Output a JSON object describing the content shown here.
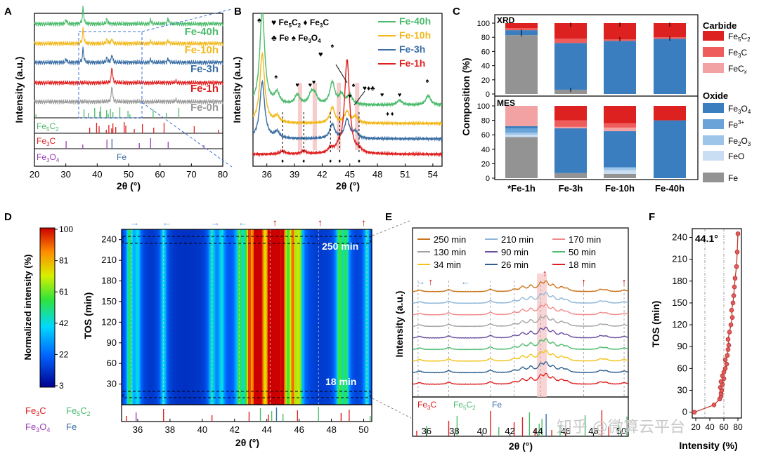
{
  "figure": {
    "panel_labels": [
      "A",
      "B",
      "C",
      "D",
      "E",
      "F"
    ]
  },
  "colors": {
    "fe40": "#4cbb6c",
    "fe10": "#f2b81c",
    "fe3": "#3a6ea5",
    "fe1": "#e02020",
    "fe0": "#999999",
    "fe5c2": "#dd2020",
    "fe3c": "#ee5c5c",
    "fecx": "#f2a2a2",
    "fe3o4": "#3a7ebf",
    "fe3plus": "#6aa3d8",
    "fe2o3": "#9dc5ea",
    "feo": "#c9def2",
    "fe": "#939393",
    "ref_fe5c2": "#4cbb6c",
    "ref_fe3c": "#e02020",
    "ref_fe3o4": "#9b3fb5",
    "ref_fe": "#3a6ea5"
  },
  "panel_a": {
    "title": "A",
    "xlabel": "2θ (°)",
    "ylabel": "Intensity (a.u.)",
    "x_ticks": [
      "20",
      "30",
      "40",
      "50",
      "60",
      "70",
      "80"
    ],
    "series_labels": [
      "Fe-40h",
      "Fe-10h",
      "Fe-3h",
      "Fe-1h",
      "Fe-0h"
    ],
    "ref_labels": {
      "fe5c2_a": "Fe",
      "fe5c2_b": "5",
      "fe5c2_c": "C",
      "fe5c2_d": "2",
      "fe3c_a": "Fe",
      "fe3c_b": "3",
      "fe3c_c": "C",
      "fe3o4_a": "Fe",
      "fe3o4_b": "3",
      "fe3o4_c": "O",
      "fe3o4_d": "4",
      "fe": "Fe"
    }
  },
  "panel_b": {
    "title": "B",
    "xlabel": "2θ (°)",
    "ylabel": "Intensity (a.u.)",
    "x_ticks": [
      "36",
      "39",
      "42",
      "45",
      "48",
      "51",
      "54"
    ],
    "legend": [
      "Fe-40h",
      "Fe-10h",
      "Fe-3h",
      "Fe-1h"
    ],
    "markers": {
      "heart": "♥",
      "diamond": "♦",
      "club": "♣",
      "spade": "♠"
    },
    "marker_labels": {
      "fe5c2_a": "Fe",
      "fe5c2_b": "5",
      "fe5c2_c": "C",
      "fe5c2_d": "2",
      "fe3c_a": "Fe",
      "fe3c_b": "3",
      "fe3c_c": "C",
      "fe": "Fe",
      "fe3o4_a": "Fe",
      "fe3o4_b": "3",
      "fe3o4_c": "O",
      "fe3o4_d": "4"
    }
  },
  "panel_c": {
    "title": "C",
    "ylabel": "Composition (%)",
    "y_ticks": [
      "0",
      "20",
      "40",
      "60",
      "80",
      "100"
    ],
    "top_label": "XRD",
    "bottom_label": "MES",
    "legend_group1": "Carbide",
    "legend_group2": "Oxide",
    "legend": [
      {
        "key": "fe5c2",
        "a": "Fe",
        "b": "5",
        "c": "C",
        "d": "2"
      },
      {
        "key": "fe3c",
        "a": "Fe",
        "b": "3",
        "c": "C",
        "d": ""
      },
      {
        "key": "fecx",
        "a": "FeC",
        "b": "",
        "c": "",
        "d": "x"
      },
      {
        "key": "fe3o4",
        "a": "Fe",
        "b": "3",
        "c": "O",
        "d": "4"
      },
      {
        "key": "fe3plus",
        "a": "Fe",
        "b": "3+",
        "c": "",
        "d": ""
      },
      {
        "key": "fe2o3",
        "a": "Fe",
        "b": "2",
        "c": "O",
        "d": "3"
      },
      {
        "key": "feo",
        "a": "FeO",
        "b": "",
        "c": "",
        "d": ""
      },
      {
        "key": "fe",
        "a": "Fe",
        "b": "",
        "c": "",
        "d": ""
      }
    ],
    "categories": [
      "*Fe-1h",
      "Fe-3h",
      "Fe-10h",
      "Fe-40h"
    ]
  },
  "panel_d": {
    "title": "D",
    "xlabel": "2θ (°)",
    "ylabel": "TOS (min)",
    "colorbar_label": "Normalized intensity (%)",
    "colorbar_ticks": [
      "100",
      "81",
      "61",
      "42",
      "22",
      "3"
    ],
    "x_ticks": [
      "36",
      "38",
      "40",
      "42",
      "44",
      "46",
      "48",
      "50"
    ],
    "y_ticks": [
      "30",
      "60",
      "90",
      "120",
      "150",
      "180",
      "210",
      "240"
    ],
    "annot_top": "250 min",
    "annot_bottom": "18 min",
    "ref_labels": {
      "fe3c_a": "Fe",
      "fe3c_b": "3",
      "fe3c_c": "C",
      "fe5c2_a": "Fe",
      "fe5c2_b": "5",
      "fe5c2_c": "C",
      "fe5c2_d": "2",
      "fe3o4_a": "Fe",
      "fe3o4_b": "3",
      "fe3o4_c": "O",
      "fe3o4_d": "4",
      "fe": "Fe"
    }
  },
  "panel_e": {
    "title": "E",
    "xlabel": "2θ (°)",
    "ylabel": "Intensity (a.u.)",
    "x_ticks": [
      "36",
      "38",
      "40",
      "42",
      "44",
      "46",
      "48",
      "50"
    ],
    "legend": [
      {
        "label": "250 min",
        "color": "#c9731a"
      },
      {
        "label": "210 min",
        "color": "#8fb6d8"
      },
      {
        "label": "170 min",
        "color": "#f08a8a"
      },
      {
        "label": "130 min",
        "color": "#a3a3a3"
      },
      {
        "label": "90 min",
        "color": "#6a4fa0"
      },
      {
        "label": "50 min",
        "color": "#4cbb6c"
      },
      {
        "label": "34 min",
        "color": "#f2c31c"
      },
      {
        "label": "26 min",
        "color": "#2f5f8f"
      },
      {
        "label": "18 min",
        "color": "#e02020"
      }
    ],
    "ref_labels": {
      "fe3c_a": "Fe",
      "fe3c_b": "3",
      "fe3c_c": "C",
      "fe5c2_a": "Fe",
      "fe5c2_b": "5",
      "fe5c2_c": "C",
      "fe5c2_d": "2",
      "fe": "Fe"
    }
  },
  "panel_f": {
    "title": "F",
    "xlabel": "Intensity (%)",
    "ylabel": "TOS (min)",
    "annot": "44.1°",
    "x_ticks": [
      "20",
      "40",
      "60",
      "80"
    ],
    "y_ticks": [
      "0",
      "30",
      "60",
      "90",
      "120",
      "150",
      "180",
      "210",
      "240"
    ]
  },
  "watermark": "知乎 @微算云平台",
  "chart_data": [
    {
      "panel": "A",
      "type": "line",
      "title": "",
      "xlabel": "2θ (°)",
      "ylabel": "Intensity (a.u.)",
      "xlim": [
        20,
        80
      ],
      "series": [
        {
          "name": "Fe-40h",
          "peaks": [
            [
              30.1,
              0.25
            ],
            [
              35.5,
              1.0
            ],
            [
              43.1,
              0.3
            ],
            [
              57.0,
              0.25
            ],
            [
              62.6,
              0.35
            ]
          ]
        },
        {
          "name": "Fe-10h",
          "peaks": [
            [
              35.5,
              0.9
            ],
            [
              43.1,
              0.25
            ],
            [
              44.7,
              0.3
            ],
            [
              57.0,
              0.15
            ],
            [
              62.6,
              0.2
            ]
          ]
        },
        {
          "name": "Fe-3h",
          "peaks": [
            [
              30.1,
              0.2
            ],
            [
              35.5,
              0.85
            ],
            [
              43.1,
              0.3
            ],
            [
              44.7,
              0.5
            ],
            [
              57.0,
              0.2
            ],
            [
              62.6,
              0.25
            ]
          ]
        },
        {
          "name": "Fe-1h",
          "peaks": [
            [
              44.7,
              1.0
            ],
            [
              65.0,
              0.1
            ]
          ]
        },
        {
          "name": "Fe-0h",
          "peaks": [
            [
              44.7,
              1.0
            ],
            [
              65.0,
              0.12
            ]
          ]
        }
      ],
      "reference": {
        "Fe5C2": [
          20.5,
          35.8,
          37.2,
          39.2,
          40.8,
          41.1,
          43.0,
          43.5,
          44.2,
          45.0,
          47.2,
          49.8,
          50.4,
          57.8,
          62.0,
          66.0
        ],
        "Fe3C": [
          37.6,
          39.8,
          40.6,
          42.9,
          43.7,
          44.6,
          45.0,
          45.9,
          48.6,
          49.1,
          51.8,
          54.4,
          58.0,
          61.3,
          70.9,
          78.6
        ],
        "Fe3O4": [
          30.1,
          35.4,
          43.1,
          53.4,
          57.0,
          62.6,
          74.0
        ],
        "Fe": [
          44.7
        ]
      }
    },
    {
      "panel": "B",
      "type": "line",
      "title": "",
      "xlabel": "2θ (°)",
      "ylabel": "Intensity (a.u.)",
      "xlim": [
        34.5,
        55
      ],
      "series": [
        {
          "name": "Fe-40h",
          "peaks": [
            [
              35.5,
              3.0
            ],
            [
              37.1,
              0.35
            ],
            [
              39.3,
              0.3
            ],
            [
              40.8,
              0.3
            ],
            [
              41.2,
              0.3
            ],
            [
              43.1,
              0.7
            ],
            [
              44.1,
              0.3
            ],
            [
              45.0,
              0.3
            ],
            [
              50.4,
              0.15
            ],
            [
              53.5,
              0.3
            ]
          ]
        },
        {
          "name": "Fe-10h",
          "peaks": [
            [
              35.5,
              2.2
            ],
            [
              37.1,
              0.2
            ],
            [
              43.1,
              0.5
            ],
            [
              44.7,
              0.35
            ],
            [
              45.6,
              0.2
            ]
          ]
        },
        {
          "name": "Fe-3h",
          "peaks": [
            [
              35.5,
              1.8
            ],
            [
              37.1,
              0.2
            ],
            [
              43.1,
              0.45
            ],
            [
              44.7,
              0.6
            ],
            [
              45.6,
              0.2
            ]
          ]
        },
        {
          "name": "Fe-1h",
          "peaks": [
            [
              37.7,
              0.1
            ],
            [
              40.0,
              0.1
            ],
            [
              42.9,
              0.15
            ],
            [
              43.8,
              0.15
            ],
            [
              44.7,
              3.0
            ],
            [
              46.0,
              0.1
            ]
          ]
        }
      ]
    },
    {
      "panel": "C-XRD",
      "type": "bar",
      "title": "XRD",
      "xlabel": "",
      "ylabel": "Composition (%)",
      "ylim": [
        0,
        100
      ],
      "categories": [
        "*Fe-1h",
        "Fe-3h",
        "Fe-10h",
        "Fe-40h"
      ],
      "series": [
        {
          "name": "Fe",
          "values": [
            83,
            6,
            0,
            0
          ]
        },
        {
          "name": "Fe3O4",
          "values": [
            7,
            66,
            75,
            78
          ]
        },
        {
          "name": "Fe3C",
          "values": [
            3,
            6,
            2,
            2
          ]
        },
        {
          "name": "Fe5C2",
          "values": [
            7,
            22,
            23,
            20
          ]
        }
      ]
    },
    {
      "panel": "C-MES",
      "type": "bar",
      "title": "MES",
      "xlabel": "",
      "ylabel": "Composition (%)",
      "ylim": [
        0,
        100
      ],
      "categories": [
        "*Fe-1h",
        "Fe-3h",
        "Fe-10h",
        "Fe-40h"
      ],
      "series": [
        {
          "name": "Fe",
          "values": [
            57,
            7,
            6,
            0
          ]
        },
        {
          "name": "FeO",
          "values": [
            3,
            0,
            5,
            0
          ]
        },
        {
          "name": "Fe2O3",
          "values": [
            3,
            0,
            4,
            0
          ]
        },
        {
          "name": "Fe3+",
          "values": [
            6,
            0,
            0,
            0
          ]
        },
        {
          "name": "Fe3O4",
          "values": [
            3,
            62,
            50,
            80
          ]
        },
        {
          "name": "FecX",
          "values": [
            28,
            2,
            5,
            0
          ]
        },
        {
          "name": "Fe3C",
          "values": [
            0,
            9,
            6,
            0
          ]
        },
        {
          "name": "Fe5C2",
          "values": [
            0,
            20,
            24,
            20
          ]
        }
      ]
    },
    {
      "panel": "D",
      "type": "heatmap",
      "title": "",
      "xlabel": "2θ (°)",
      "ylabel": "TOS (min)",
      "xlim": [
        35,
        50.5
      ],
      "ylim": [
        0,
        255
      ],
      "peaks_2theta": [
        [
          35.5,
          0.45
        ],
        [
          36.0,
          0.3
        ],
        [
          37.6,
          0.35
        ],
        [
          40.6,
          0.35
        ],
        [
          41.2,
          0.3
        ],
        [
          42.3,
          0.4
        ],
        [
          42.9,
          0.65
        ],
        [
          43.3,
          0.7
        ],
        [
          43.6,
          0.85
        ],
        [
          44.2,
          1.0
        ],
        [
          44.6,
          0.95
        ],
        [
          45.0,
          0.75
        ],
        [
          45.6,
          0.65
        ],
        [
          46.0,
          0.5
        ],
        [
          48.5,
          0.45
        ],
        [
          48.9,
          0.4
        ],
        [
          50.2,
          0.35
        ]
      ],
      "colorbar": {
        "label": "Normalized intensity (%)",
        "range": [
          3,
          100
        ]
      }
    },
    {
      "panel": "E",
      "type": "line",
      "title": "",
      "xlabel": "2θ (°)",
      "ylabel": "Intensity (a.u.)",
      "xlim": [
        35,
        50.5
      ],
      "series_names": [
        "250 min",
        "210 min",
        "170 min",
        "130 min",
        "90 min",
        "50 min",
        "34 min",
        "26 min",
        "18 min"
      ],
      "peaks": [
        [
          35.5,
          0.2
        ],
        [
          37.6,
          0.25
        ],
        [
          40.6,
          0.3
        ],
        [
          42.3,
          0.25
        ],
        [
          42.9,
          0.55
        ],
        [
          43.5,
          0.65
        ],
        [
          44.2,
          0.85
        ],
        [
          44.6,
          1.0
        ],
        [
          45.1,
          0.65
        ],
        [
          45.7,
          0.45
        ],
        [
          46.1,
          0.3
        ],
        [
          48.5,
          0.25
        ],
        [
          48.9,
          0.2
        ],
        [
          50.2,
          0.2
        ]
      ]
    },
    {
      "panel": "F",
      "type": "scatter",
      "title": "44.1°",
      "xlabel": "Intensity (%)",
      "ylabel": "TOS (min)",
      "xlim": [
        15,
        85
      ],
      "ylim": [
        -8,
        252
      ],
      "x": [
        18,
        46,
        54,
        56,
        56,
        57,
        55,
        58,
        56,
        60,
        58,
        60,
        62,
        64,
        62,
        65,
        66,
        67,
        66,
        68,
        70,
        72,
        71,
        73,
        74,
        75,
        76,
        78,
        79,
        80
      ],
      "y": [
        0,
        10,
        18,
        22,
        26,
        30,
        34,
        38,
        42,
        46,
        50,
        55,
        60,
        66,
        72,
        78,
        86,
        92,
        100,
        110,
        120,
        130,
        140,
        150,
        160,
        172,
        184,
        200,
        220,
        245
      ]
    }
  ]
}
